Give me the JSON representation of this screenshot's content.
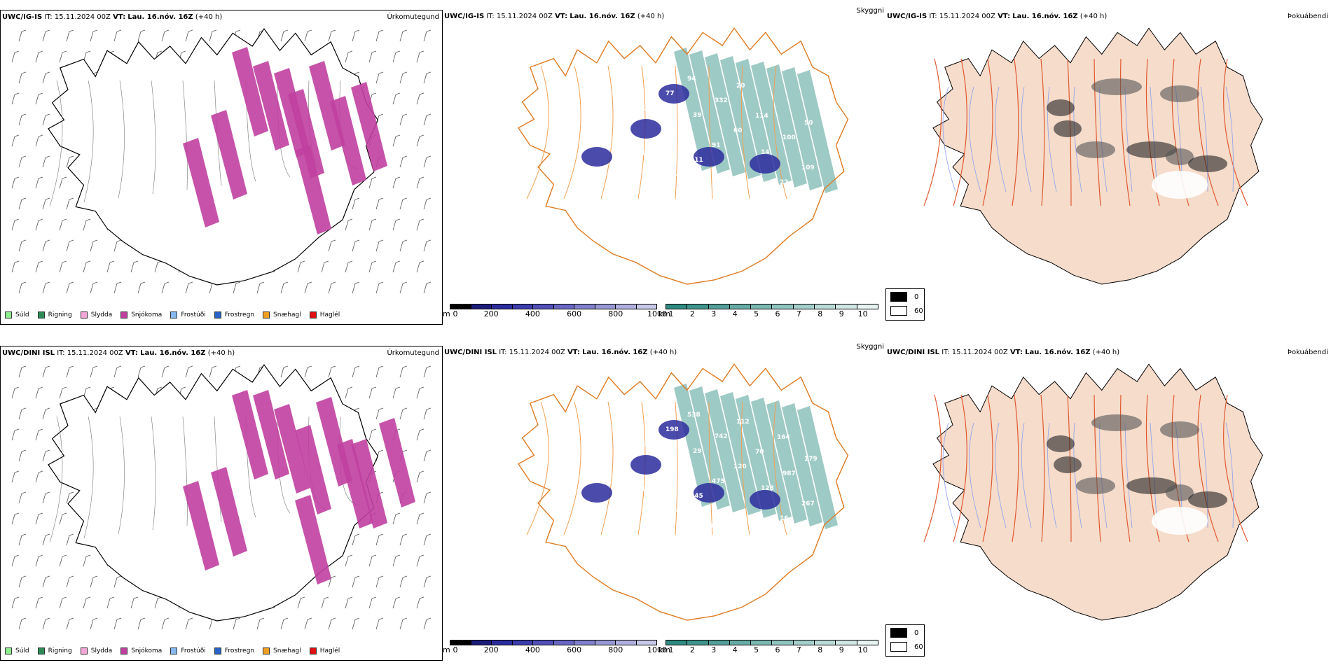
{
  "rows": [
    {
      "model": "UWC/IG-IS",
      "it_label": "IT:",
      "it_value": "15.11.2024 00Z",
      "vt_label": "VT:",
      "vt_value": "Lau. 16.nóv. 16Z",
      "lead": "(+40 h)"
    },
    {
      "model": "UWC/DINI ISL",
      "it_label": "IT:",
      "it_value": "15.11.2024 00Z",
      "vt_label": "VT:",
      "vt_value": "Lau. 16.nóv. 16Z",
      "lead": "(+40 h)"
    }
  ],
  "field_names": {
    "precip_type": "Úrkomutegund",
    "cloud": "Skyggni",
    "fog": "Þokuábendi"
  },
  "precip_legend": [
    {
      "label": "Súld",
      "color": "#90ee90"
    },
    {
      "label": "Rigning",
      "color": "#2e8b57"
    },
    {
      "label": "Slydda",
      "color": "#f4a6d7"
    },
    {
      "label": "Snjókoma",
      "color": "#c040a0"
    },
    {
      "label": "Frostúði",
      "color": "#87b8f0"
    },
    {
      "label": "Frostregn",
      "color": "#2a62c8"
    },
    {
      "label": "Snæhagl",
      "color": "#f0a020"
    },
    {
      "label": "Haglél",
      "color": "#e01010"
    }
  ],
  "cloudbase_scale": {
    "unit": "m",
    "ticks": [
      "0",
      "200",
      "400",
      "600",
      "800",
      "1000"
    ],
    "colors": [
      "#000000",
      "#1c1c7a",
      "#2c2c9c",
      "#3c3cac",
      "#5050b8",
      "#6868c4",
      "#8080cc",
      "#9898d6",
      "#b0b0e0",
      "#c8c8ea"
    ]
  },
  "visibility_scale": {
    "unit": "km",
    "ticks": [
      "1",
      "2",
      "3",
      "4",
      "5",
      "6",
      "7",
      "8",
      "9",
      "10"
    ],
    "colors": [
      "#2f8a80",
      "#3f958c",
      "#52a099",
      "#66aca6",
      "#7ab8b2",
      "#8fc4bf",
      "#a4d0cb",
      "#badcd8",
      "#d0e8e5",
      "#e8f4f2"
    ]
  },
  "fog_legend": [
    {
      "value": "0",
      "color": "#000000"
    },
    {
      "value": "60",
      "color": "#ffffff"
    }
  ],
  "cloud_labels": [
    [
      "77",
      "39",
      "14",
      "56",
      "332",
      "100",
      "449",
      "20",
      "50",
      "111",
      "338",
      "13",
      "91",
      "22",
      "77",
      "60",
      "109",
      "94",
      "114",
      "113"
    ],
    [
      "228",
      "29",
      "128",
      "310",
      "742",
      "987",
      "865",
      "112",
      "179",
      "145",
      "29",
      "326",
      "475",
      "16",
      "198",
      "120",
      "267",
      "538",
      "70",
      "126",
      "95",
      "164",
      "00"
    ]
  ]
}
